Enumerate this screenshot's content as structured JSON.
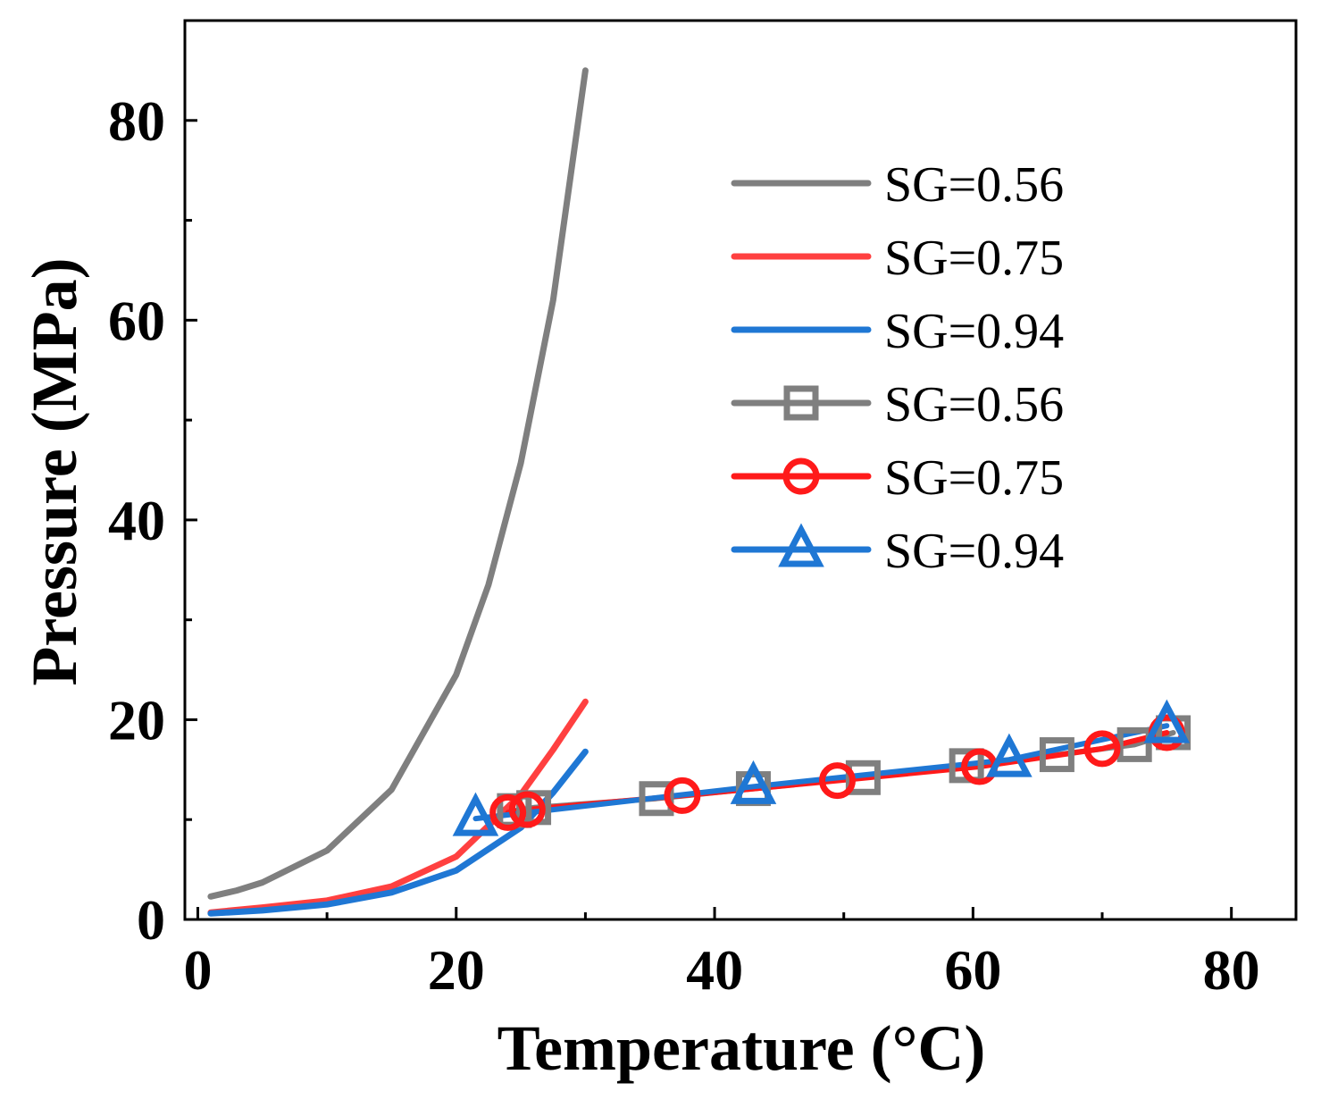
{
  "chart_data": {
    "type": "line",
    "xlabel": "Temperature (°C)",
    "ylabel": "Pressure (MPa)",
    "xlim": [
      -1,
      85
    ],
    "ylim": [
      0,
      90
    ],
    "xticks": [
      0,
      20,
      40,
      60,
      80
    ],
    "yticks": [
      0,
      20,
      40,
      60,
      80
    ],
    "xticks_minor": [
      10,
      30,
      50,
      70
    ],
    "yticks_minor": [
      10,
      30,
      50,
      70
    ],
    "legend_position": "top-right",
    "series": [
      {
        "name": "SG=0.56",
        "style": "line",
        "color": "#7f7f7f",
        "x": [
          1,
          3,
          5,
          10,
          15,
          20,
          22.5,
          25,
          27.5,
          30
        ],
        "y": [
          2.3,
          2.9,
          3.7,
          6.9,
          13.0,
          24.5,
          33.5,
          45.7,
          62.0,
          85.0
        ]
      },
      {
        "name": "SG=0.75",
        "style": "line",
        "color": "#ff4040",
        "x": [
          1,
          5,
          10,
          15,
          20,
          25,
          27.5,
          30
        ],
        "y": [
          0.7,
          1.2,
          1.9,
          3.3,
          6.3,
          12.5,
          17.0,
          21.8
        ]
      },
      {
        "name": "SG=0.94",
        "style": "line",
        "color": "#1f77d4",
        "x": [
          1,
          5,
          10,
          15,
          20,
          25,
          27.5,
          30
        ],
        "y": [
          0.6,
          0.9,
          1.5,
          2.7,
          4.9,
          9.2,
          12.7,
          16.8
        ]
      },
      {
        "name": "SG=0.56",
        "style": "line-marker",
        "marker": "square",
        "color": "#7f7f7f",
        "x": [
          24.5,
          26.0,
          35.5,
          43.0,
          51.5,
          59.5,
          66.5,
          72.5,
          75.5
        ],
        "y": [
          10.9,
          11.2,
          12.1,
          13.1,
          14.2,
          15.4,
          16.5,
          17.5,
          18.7
        ]
      },
      {
        "name": "SG=0.75",
        "style": "line-marker",
        "marker": "circle",
        "color": "#ff1a1a",
        "x": [
          24.0,
          25.5,
          37.5,
          49.5,
          60.5,
          70.0,
          75.0
        ],
        "y": [
          10.7,
          11.0,
          12.4,
          13.9,
          15.3,
          17.1,
          18.7
        ]
      },
      {
        "name": "SG=0.94",
        "style": "line-marker",
        "marker": "triangle",
        "color": "#1f77d4",
        "x": [
          21.5,
          43.0,
          62.8,
          75.0
        ],
        "y": [
          10.1,
          13.3,
          16.0,
          19.4
        ]
      }
    ]
  }
}
